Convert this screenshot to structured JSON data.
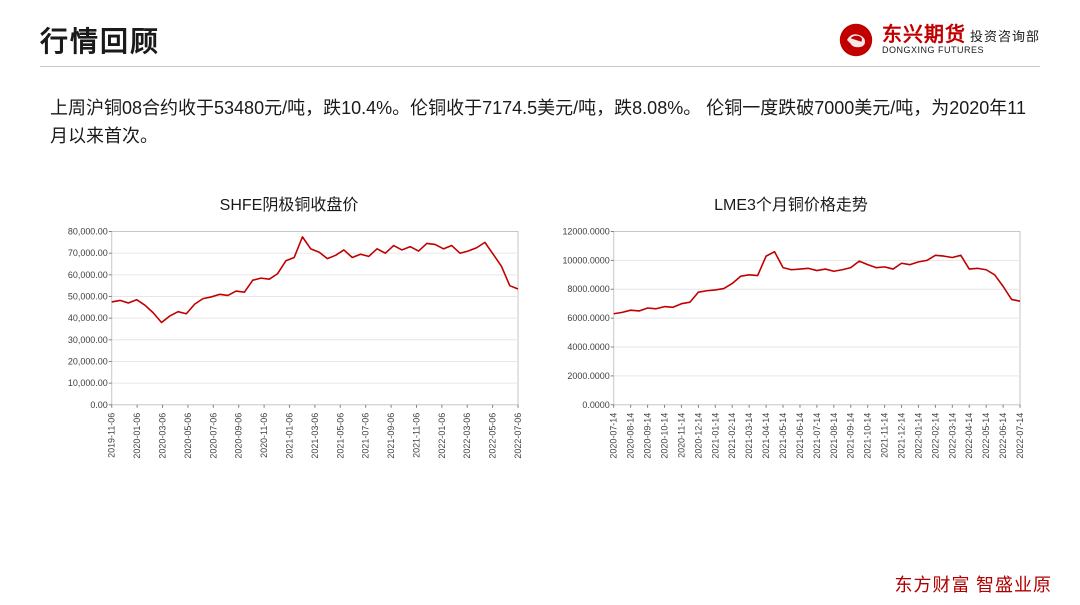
{
  "header": {
    "title": "行情回顾",
    "brand_cn": "东兴期货",
    "brand_dept": "投资咨询部",
    "brand_en": "DONGXING FUTURES",
    "logo_color": "#c00000"
  },
  "body_text": "上周沪铜08合约收于53480元/吨，跌10.4%。伦铜收于7174.5美元/吨，跌8.08%。 伦铜一度跌破7000美元/吨，为2020年11月以来首次。",
  "footer": "东方财富  智盛业原",
  "chart_shfe": {
    "type": "line",
    "title": "SHFE阴极铜收盘价",
    "line_color": "#c00000",
    "line_width": 1.6,
    "background_color": "#ffffff",
    "border_color": "#c6c6c6",
    "grid_color": "#e6e6e6",
    "axis_color": "#808080",
    "tick_fontsize": 9,
    "ylim": [
      0,
      80000
    ],
    "ytick_step": 10000,
    "ytick_format": "comma2",
    "x_labels": [
      "2019-11-06",
      "2020-01-06",
      "2020-03-06",
      "2020-05-06",
      "2020-07-06",
      "2020-09-06",
      "2020-11-06",
      "2021-01-06",
      "2021-03-06",
      "2021-05-06",
      "2021-07-06",
      "2021-09-06",
      "2021-11-06",
      "2022-01-06",
      "2022-03-06",
      "2022-05-06",
      "2022-07-06"
    ],
    "values": [
      47500,
      48200,
      47000,
      48500,
      46000,
      42500,
      38000,
      41000,
      43000,
      42000,
      46500,
      49000,
      49800,
      51000,
      50500,
      52500,
      52000,
      57500,
      58500,
      58000,
      60500,
      66500,
      68000,
      77500,
      72000,
      70500,
      67500,
      69000,
      71500,
      68000,
      69500,
      68500,
      72000,
      70000,
      73500,
      71500,
      73000,
      71000,
      74500,
      74000,
      72000,
      73500,
      70000,
      71000,
      72500,
      75000,
      69500,
      64000,
      55000,
      53480
    ]
  },
  "chart_lme": {
    "type": "line",
    "title": "LME3个月铜价格走势",
    "line_color": "#c00000",
    "line_width": 1.6,
    "background_color": "#ffffff",
    "border_color": "#c6c6c6",
    "grid_color": "#e6e6e6",
    "axis_color": "#808080",
    "tick_fontsize": 9,
    "ylim": [
      0,
      12000
    ],
    "ytick_step": 2000,
    "ytick_format": "fixed4",
    "x_labels": [
      "2020-07-14",
      "2020-08-14",
      "2020-09-14",
      "2020-10-14",
      "2020-11-14",
      "2020-12-14",
      "2021-01-14",
      "2021-02-14",
      "2021-03-14",
      "2021-04-14",
      "2021-05-14",
      "2021-06-14",
      "2021-07-14",
      "2021-08-14",
      "2021-09-14",
      "2021-10-14",
      "2021-11-14",
      "2021-12-14",
      "2022-01-14",
      "2022-02-14",
      "2022-03-14",
      "2022-04-14",
      "2022-05-14",
      "2022-06-14",
      "2022-07-14"
    ],
    "values": [
      6300,
      6400,
      6550,
      6500,
      6700,
      6650,
      6800,
      6750,
      7000,
      7100,
      7800,
      7900,
      7950,
      8050,
      8400,
      8900,
      9000,
      8950,
      10300,
      10600,
      9500,
      9350,
      9400,
      9450,
      9300,
      9400,
      9250,
      9350,
      9500,
      9950,
      9700,
      9500,
      9550,
      9400,
      9800,
      9700,
      9900,
      10000,
      10350,
      10300,
      10200,
      10350,
      9400,
      9450,
      9350,
      9000,
      8200,
      7300,
      7174
    ]
  }
}
